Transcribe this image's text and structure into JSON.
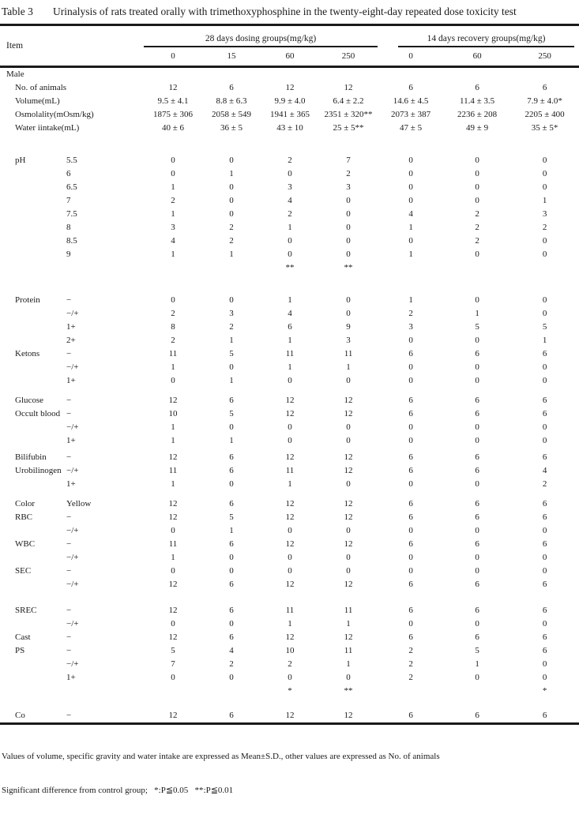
{
  "caption": {
    "label": "Table 3",
    "text": "Urinalysis of rats treated orally with trimethoxyphosphine in the twenty-eight-day repeated dose toxicity test"
  },
  "header": {
    "item_label": "Item",
    "groups": [
      {
        "label": "28 days dosing groups(mg/kg)",
        "doses": [
          "0",
          "15",
          "60",
          "250"
        ]
      },
      {
        "label": "14 days recovery groups(mg/kg)",
        "doses": [
          "0",
          "60",
          "250"
        ]
      }
    ]
  },
  "table": {
    "sections": [
      {
        "gap": 0,
        "rows": [
          {
            "item": "Male",
            "sub": "",
            "flush": true,
            "v": [
              "",
              "",
              "",
              "",
              "",
              "",
              ""
            ]
          },
          {
            "item": "No. of animals",
            "sub": "",
            "v": [
              "12",
              "6",
              "12",
              "12",
              "6",
              "6",
              "6"
            ]
          },
          {
            "item": "Volume(mL)",
            "sub": "",
            "v": [
              "9.5 ± 4.1",
              "8.8 ± 6.3",
              "9.9 ± 4.0",
              "6.4 ± 2.2",
              "14.6 ± 4.5",
              "11.4 ± 3.5",
              "7.9 ± 4.0*"
            ]
          },
          {
            "item": "Osmolality(mOsm/kg)",
            "sub": "",
            "v": [
              "1875 ± 306",
              "2058 ± 549",
              "1941 ± 365",
              "2351 ± 320**",
              "2073 ± 387",
              "2236 ± 208",
              "2205 ± 400"
            ]
          },
          {
            "item": "Water iintake(mL)",
            "sub": "",
            "v": [
              "40 ± 6",
              "36 ± 5",
              "43 ± 10",
              "25 ± 5**",
              "47 ± 5",
              "49 ± 9",
              "35 ± 5*"
            ]
          }
        ]
      },
      {
        "gap": 24,
        "rows": [
          {
            "item": "pH",
            "sub": "5.5",
            "v": [
              "0",
              "0",
              "2",
              "7",
              "0",
              "0",
              "0"
            ]
          },
          {
            "item": "",
            "sub": "6",
            "v": [
              "0",
              "1",
              "0",
              "2",
              "0",
              "0",
              "0"
            ]
          },
          {
            "item": "",
            "sub": "6.5",
            "v": [
              "1",
              "0",
              "3",
              "3",
              "0",
              "0",
              "0"
            ]
          },
          {
            "item": "",
            "sub": "7",
            "v": [
              "2",
              "0",
              "4",
              "0",
              "0",
              "0",
              "1"
            ]
          },
          {
            "item": "",
            "sub": "7.5",
            "v": [
              "1",
              "0",
              "2",
              "0",
              "4",
              "2",
              "3"
            ]
          },
          {
            "item": "",
            "sub": "8",
            "v": [
              "3",
              "2",
              "1",
              "0",
              "1",
              "2",
              "2"
            ]
          },
          {
            "item": "",
            "sub": "8.5",
            "v": [
              "4",
              "2",
              "0",
              "0",
              "0",
              "2",
              "0"
            ]
          },
          {
            "item": "",
            "sub": "9",
            "v": [
              "1",
              "1",
              "0",
              "0",
              "1",
              "0",
              "0"
            ]
          },
          {
            "item": "",
            "sub": "",
            "v": [
              "",
              "",
              "**",
              "**",
              "",
              "",
              ""
            ]
          }
        ]
      },
      {
        "gap": 24,
        "rows": [
          {
            "item": "Protein",
            "sub": "−",
            "v": [
              "0",
              "0",
              "1",
              "0",
              "1",
              "0",
              "0"
            ]
          },
          {
            "item": "",
            "sub": "−/+",
            "v": [
              "2",
              "3",
              "4",
              "0",
              "2",
              "1",
              "0"
            ]
          },
          {
            "item": "",
            "sub": "1+",
            "v": [
              "8",
              "2",
              "6",
              "9",
              "3",
              "5",
              "5"
            ]
          },
          {
            "item": "",
            "sub": "2+",
            "v": [
              "2",
              "1",
              "1",
              "3",
              "0",
              "0",
              "1"
            ]
          },
          {
            "item": "Ketons",
            "sub": "−",
            "v": [
              "11",
              "5",
              "11",
              "11",
              "6",
              "6",
              "6"
            ]
          },
          {
            "item": "",
            "sub": "−/+",
            "v": [
              "1",
              "0",
              "1",
              "1",
              "0",
              "0",
              "0"
            ]
          },
          {
            "item": "",
            "sub": "1+",
            "v": [
              "0",
              "1",
              "0",
              "0",
              "0",
              "0",
              "0"
            ]
          }
        ]
      },
      {
        "gap": 8,
        "rows": [
          {
            "item": "Glucose",
            "sub": "−",
            "v": [
              "12",
              "6",
              "12",
              "12",
              "6",
              "6",
              "6"
            ]
          },
          {
            "item": "Occult blood",
            "sub": "−",
            "v": [
              "10",
              "5",
              "12",
              "12",
              "6",
              "6",
              "6"
            ]
          },
          {
            "item": "",
            "sub": "−/+",
            "v": [
              "1",
              "0",
              "0",
              "0",
              "0",
              "0",
              "0"
            ]
          },
          {
            "item": "",
            "sub": "1+",
            "v": [
              "1",
              "1",
              "0",
              "0",
              "0",
              "0",
              "0"
            ]
          }
        ]
      },
      {
        "gap": 4,
        "rows": [
          {
            "item": "Bilifubin",
            "sub": "−",
            "v": [
              "12",
              "6",
              "12",
              "12",
              "6",
              "6",
              "6"
            ]
          },
          {
            "item": "Urobilinogen",
            "sub": "−/+",
            "v": [
              "11",
              "6",
              "11",
              "12",
              "6",
              "6",
              "4"
            ]
          },
          {
            "item": "",
            "sub": "1+",
            "v": [
              "1",
              "0",
              "1",
              "0",
              "0",
              "0",
              "2"
            ]
          }
        ]
      },
      {
        "gap": 8,
        "rows": [
          {
            "item": "Color",
            "sub": "Yellow",
            "v": [
              "12",
              "6",
              "12",
              "12",
              "6",
              "6",
              "6"
            ]
          },
          {
            "item": "RBC",
            "sub": "−",
            "v": [
              "12",
              "5",
              "12",
              "12",
              "6",
              "6",
              "6"
            ]
          },
          {
            "item": "",
            "sub": "−/+",
            "v": [
              "0",
              "1",
              "0",
              "0",
              "0",
              "0",
              "0"
            ]
          },
          {
            "item": "WBC",
            "sub": "−",
            "v": [
              "11",
              "6",
              "12",
              "12",
              "6",
              "6",
              "6"
            ]
          },
          {
            "item": "",
            "sub": "−/+",
            "v": [
              "1",
              "0",
              "0",
              "0",
              "0",
              "0",
              "0"
            ]
          },
          {
            "item": "SEC",
            "sub": "−",
            "v": [
              "0",
              "0",
              "0",
              "0",
              "0",
              "0",
              "0"
            ]
          },
          {
            "item": "",
            "sub": "−/+",
            "v": [
              "12",
              "6",
              "12",
              "12",
              "6",
              "6",
              "6"
            ]
          }
        ]
      },
      {
        "gap": 16,
        "rows": [
          {
            "item": "SREC",
            "sub": "−",
            "v": [
              "12",
              "6",
              "11",
              "11",
              "6",
              "6",
              "6"
            ]
          },
          {
            "item": "",
            "sub": "−/+",
            "v": [
              "0",
              "0",
              "1",
              "1",
              "0",
              "0",
              "0"
            ]
          },
          {
            "item": "Cast",
            "sub": "−",
            "v": [
              "12",
              "6",
              "12",
              "12",
              "6",
              "6",
              "6"
            ]
          },
          {
            "item": "PS",
            "sub": "−",
            "v": [
              "5",
              "4",
              "10",
              "11",
              "2",
              "5",
              "6"
            ]
          },
          {
            "item": "",
            "sub": "−/+",
            "v": [
              "7",
              "2",
              "2",
              "1",
              "2",
              "1",
              "0"
            ]
          },
          {
            "item": "",
            "sub": "1+",
            "v": [
              "0",
              "0",
              "0",
              "0",
              "2",
              "0",
              "0"
            ]
          },
          {
            "item": "",
            "sub": "",
            "v": [
              "",
              "",
              "*",
              "**",
              "",
              "",
              "*"
            ]
          }
        ]
      },
      {
        "gap": 14,
        "rows": [
          {
            "item": "Co",
            "sub": "−",
            "v": [
              "12",
              "6",
              "12",
              "12",
              "6",
              "6",
              "6"
            ]
          }
        ]
      }
    ]
  },
  "footnotes": [
    "Values of volume, specific gravity and water intake are expressed as Mean±S.D., other values are expressed as No. of animals",
    "Significant difference from control group;   *:P≦0.05   **:P≦0.01"
  ]
}
